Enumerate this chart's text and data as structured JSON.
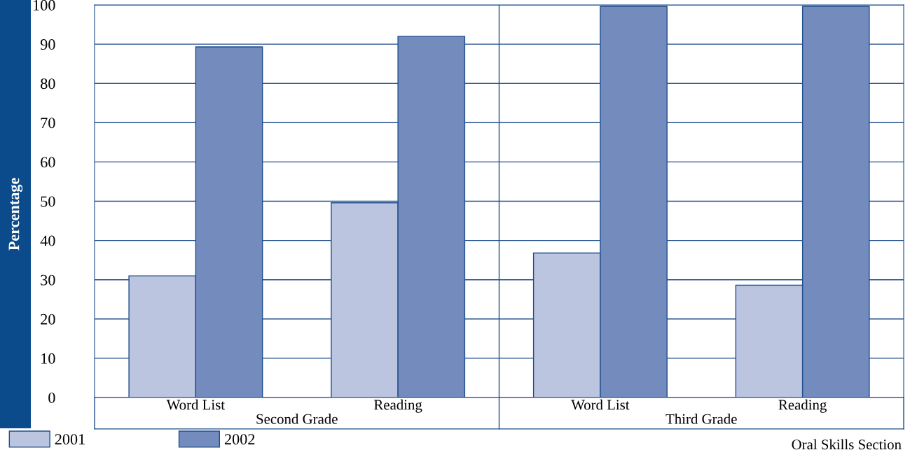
{
  "chart_data": {
    "type": "bar",
    "ylabel": "Percentage",
    "categories": [
      "Word List",
      "Reading",
      "Word List",
      "Reading"
    ],
    "series": [
      {
        "name": "2001",
        "color": "#bcc5df",
        "values": [
          31,
          49.6,
          36.8,
          28.6
        ]
      },
      {
        "name": "2002",
        "color": "#738bbd",
        "values": [
          89.3,
          92,
          99.6,
          99.6
        ]
      }
    ],
    "ylim": [
      0,
      100
    ],
    "yticks": [
      0,
      10,
      20,
      30,
      40,
      50,
      60,
      70,
      80,
      90,
      100
    ],
    "grid": "y",
    "legend": "bottom left",
    "annotations": [
      "Second Grade",
      "Third Grade",
      "Oral Skills Section"
    ]
  }
}
